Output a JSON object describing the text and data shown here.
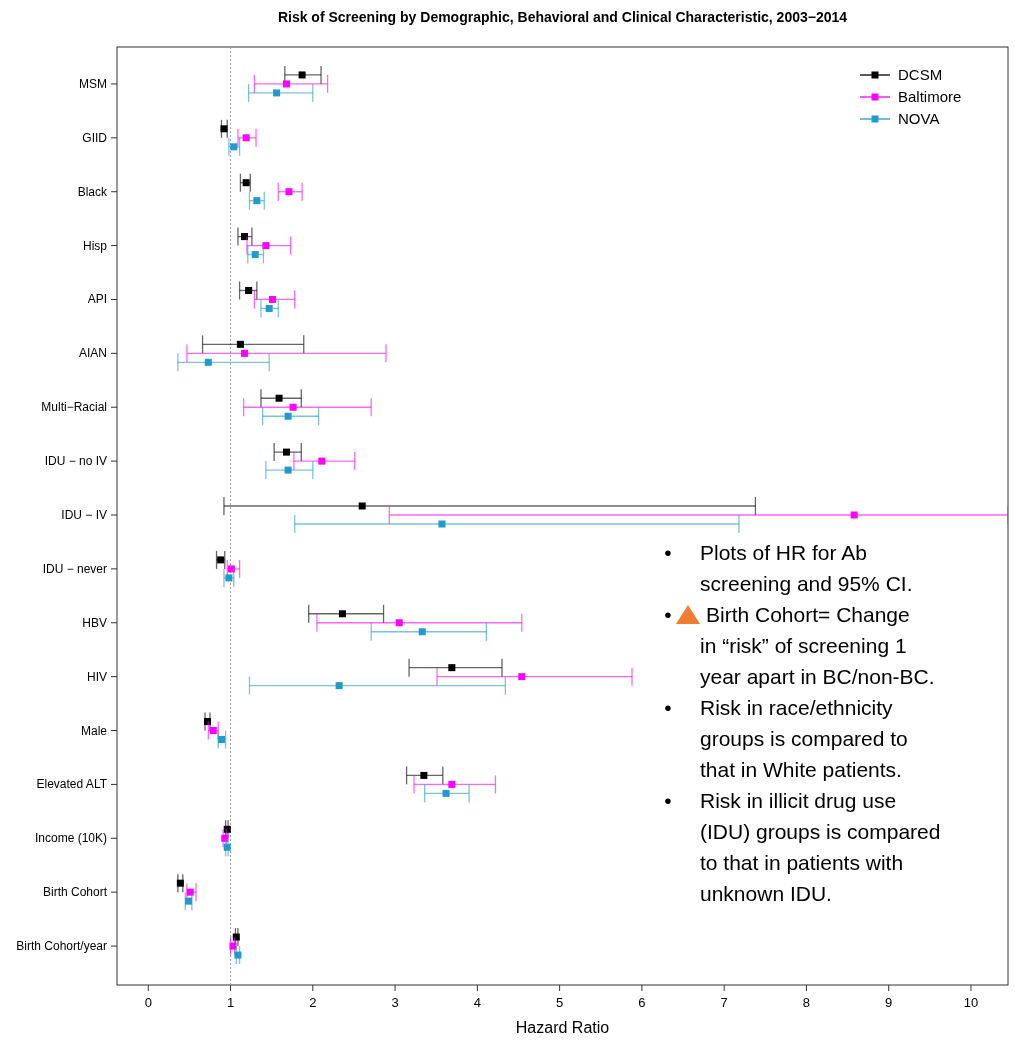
{
  "chart_data": {
    "type": "scatter",
    "orientation": "horizontal",
    "title": "Risk of Screening by Demographic, Behavioral and Clinical Characteristic, 2003−2014",
    "xlabel": "Hazard Ratio",
    "categories": [
      "MSM",
      "GIID",
      "Black",
      "Hisp",
      "API",
      "AIAN",
      "Multi−Racial",
      "IDU − no IV",
      "IDU − IV",
      "IDU − never",
      "HBV",
      "HIV",
      "Male",
      "Elevated ALT",
      "Income (10K)",
      "Birth Cohort",
      "Birth Cohort/year"
    ],
    "series": [
      {
        "name": "DCSM",
        "color": "#000000",
        "values": [
          1.87,
          0.92,
          1.19,
          1.17,
          1.22,
          1.12,
          1.59,
          1.68,
          2.6,
          0.88,
          2.36,
          3.69,
          0.72,
          3.35,
          0.96,
          0.39,
          1.07
        ],
        "errors": [
          [
            1.66,
            2.1
          ],
          [
            0.89,
            0.96
          ],
          [
            1.12,
            1.24
          ],
          [
            1.09,
            1.26
          ],
          [
            1.11,
            1.32
          ],
          [
            0.66,
            1.89
          ],
          [
            1.37,
            1.86
          ],
          [
            1.53,
            1.86
          ],
          [
            0.92,
            7.38
          ],
          [
            0.83,
            0.93
          ],
          [
            1.95,
            2.86
          ],
          [
            3.17,
            4.3
          ],
          [
            0.69,
            0.75
          ],
          [
            3.14,
            3.58
          ],
          [
            0.94,
            0.97
          ],
          [
            0.36,
            0.42
          ],
          [
            1.06,
            1.09
          ]
        ]
      },
      {
        "name": "Baltimore",
        "color": "#ff00ff",
        "values": [
          1.68,
          1.19,
          1.71,
          1.43,
          1.51,
          1.17,
          1.76,
          2.11,
          8.58,
          1.01,
          3.05,
          4.54,
          0.79,
          3.69,
          0.93,
          0.51,
          1.03
        ],
        "errors": [
          [
            1.29,
            2.18
          ],
          [
            1.09,
            1.31
          ],
          [
            1.58,
            1.87
          ],
          [
            1.2,
            1.73
          ],
          [
            1.29,
            1.78
          ],
          [
            0.47,
            2.89
          ],
          [
            1.16,
            2.71
          ],
          [
            1.77,
            2.51
          ],
          [
            2.93,
            10.45
          ],
          [
            0.96,
            1.11
          ],
          [
            2.05,
            4.54
          ],
          [
            3.51,
            5.88
          ],
          [
            0.73,
            0.85
          ],
          [
            3.23,
            4.22
          ],
          [
            0.91,
            0.95
          ],
          [
            0.47,
            0.58
          ],
          [
            1.0,
            1.05
          ]
        ]
      },
      {
        "name": "NOVA",
        "color": "#1f9bcf",
        "values": [
          1.56,
          1.04,
          1.32,
          1.3,
          1.47,
          0.73,
          1.7,
          1.7,
          3.57,
          0.98,
          3.33,
          2.32,
          0.89,
          3.62,
          0.96,
          0.49,
          1.09
        ],
        "errors": [
          [
            1.22,
            2.0
          ],
          [
            0.98,
            1.11
          ],
          [
            1.23,
            1.41
          ],
          [
            1.21,
            1.4
          ],
          [
            1.37,
            1.58
          ],
          [
            0.36,
            1.47
          ],
          [
            1.39,
            2.07
          ],
          [
            1.43,
            2.0
          ],
          [
            1.78,
            7.18
          ],
          [
            0.92,
            1.04
          ],
          [
            2.71,
            4.11
          ],
          [
            1.23,
            4.34
          ],
          [
            0.85,
            0.94
          ],
          [
            3.36,
            3.9
          ],
          [
            0.94,
            0.97
          ],
          [
            0.45,
            0.53
          ],
          [
            1.07,
            1.11
          ]
        ]
      }
    ],
    "xlim": [
      -0.38,
      10.45
    ],
    "xticks": [
      0,
      1,
      2,
      3,
      4,
      5,
      6,
      7,
      8,
      9,
      10
    ],
    "ref_lines": [
      {
        "axis": "x",
        "value": 1,
        "color": "#999999",
        "line_style": "dotted"
      }
    ],
    "marker": "square",
    "legend": "top right",
    "grid": false,
    "annotations": [
      "• Plots of HR for Ab screening and 95% CI.",
      "• Birth Cohort= Change in “risk” of screening 1 year apart in BC/non-BC.",
      "• Risk in race/ethnicity groups is compared to that in White patients.",
      "• Risk in illicit drug use (IDU) groups is compared to that in patients with unknown IDU."
    ]
  }
}
